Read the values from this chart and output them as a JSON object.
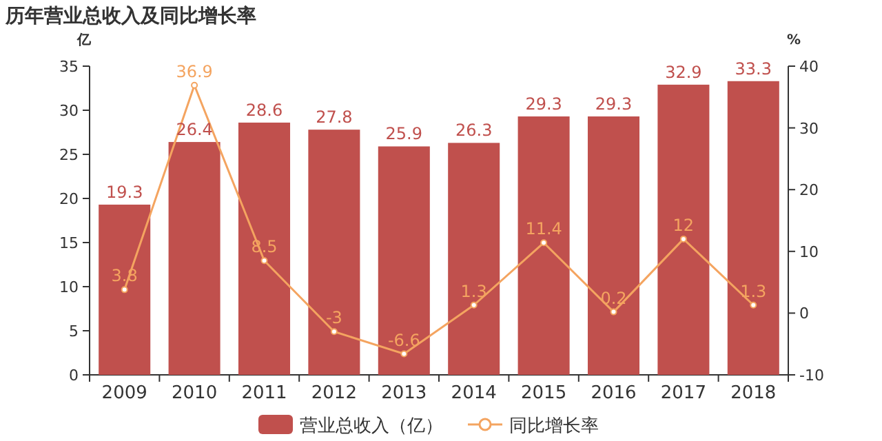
{
  "chart_data": {
    "type": "bar",
    "title": "历年营业总收入及同比增长率",
    "ylabel": "亿",
    "y2label": "%",
    "categories": [
      "2009",
      "2010",
      "2011",
      "2012",
      "2013",
      "2014",
      "2015",
      "2016",
      "2017",
      "2018"
    ],
    "series": [
      {
        "name": "营业总收入（亿）",
        "color": "#c0504d",
        "values": [
          19.3,
          26.4,
          28.6,
          27.8,
          25.9,
          26.3,
          29.3,
          29.3,
          32.9,
          33.3
        ]
      },
      {
        "name": "同比增长率",
        "type": "line",
        "axis": "y2",
        "color": "#f4a460",
        "marker": "circle",
        "values": [
          3.8,
          36.9,
          8.5,
          -3,
          -6.6,
          1.3,
          11.4,
          0.2,
          12,
          1.3
        ]
      }
    ],
    "ylim": [
      0,
      35
    ],
    "yticks": [
      0,
      5,
      10,
      15,
      20,
      25,
      30,
      35
    ],
    "y2lim": [
      -10,
      40
    ],
    "y2ticks": [
      -10,
      0,
      10,
      20,
      30,
      40
    ],
    "data_labels": true,
    "legend": "bottom"
  }
}
